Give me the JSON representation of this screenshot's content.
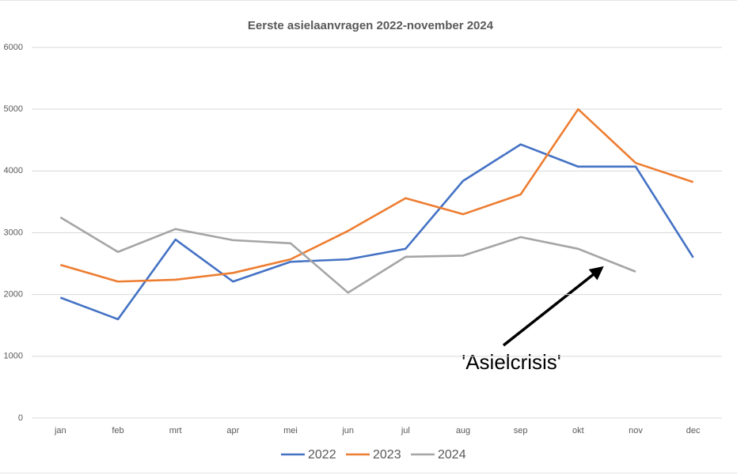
{
  "chart_data": {
    "type": "line",
    "title": "Eerste asielaanvragen 2022-november 2024",
    "categories": [
      "jan",
      "feb",
      "mrt",
      "apr",
      "mei",
      "jun",
      "jul",
      "aug",
      "sep",
      "okt",
      "nov",
      "dec"
    ],
    "series": [
      {
        "name": "2022",
        "color": "#4472c4",
        "values": [
          1950,
          1600,
          2890,
          2210,
          2530,
          2570,
          2740,
          3840,
          4430,
          4070,
          4070,
          2600
        ]
      },
      {
        "name": "2023",
        "color": "#ed7d31",
        "values": [
          2480,
          2210,
          2240,
          2350,
          2570,
          3030,
          3560,
          3300,
          3620,
          5000,
          4130,
          3820
        ]
      },
      {
        "name": "2024",
        "color": "#a5a5a5",
        "values": [
          3250,
          2690,
          3060,
          2880,
          2830,
          2030,
          2610,
          2630,
          2930,
          2740,
          2370,
          null
        ]
      }
    ],
    "ylim": [
      0,
      6000
    ],
    "yticks": [
      0,
      1000,
      2000,
      3000,
      4000,
      5000,
      6000
    ],
    "grid": true,
    "legend": "bottom",
    "annotation": "'Asielcrisis'"
  }
}
